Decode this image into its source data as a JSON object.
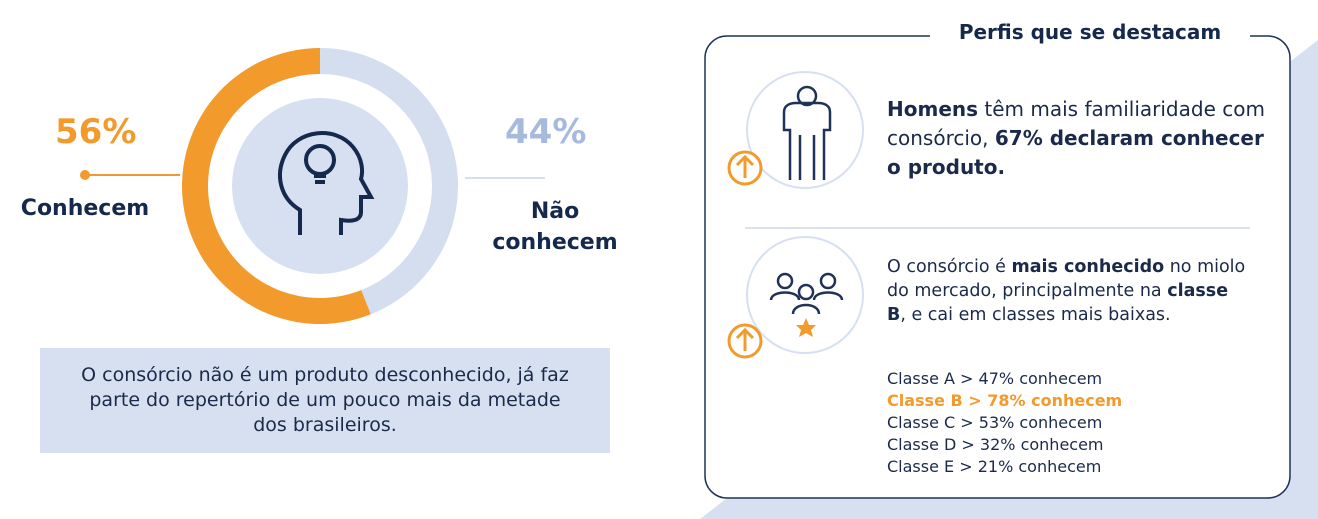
{
  "chart_data": {
    "type": "donut",
    "categories": [
      "Conhecem",
      "Não conhecem"
    ],
    "values": [
      56,
      44
    ],
    "value_labels": [
      "56%",
      "44%"
    ],
    "colors": [
      "#f39a2c",
      "#d4deef"
    ]
  },
  "summary": "O consórcio não é um produto desconhecido, já faz parte do repertório de um pouco mais da metade dos brasileiros.",
  "panel": {
    "title": "Perfis que se destacam",
    "profiles": [
      {
        "text": [
          {
            "text": "Homens",
            "bold": true
          },
          {
            "text": " têm mais familiaridade com consórcio, ",
            "bold": false
          },
          {
            "text": "67% declaram conhecer o produto.",
            "bold": true
          }
        ]
      },
      {
        "text": [
          {
            "text": "O consórcio é ",
            "bold": false
          },
          {
            "text": "mais conhecido",
            "bold": true
          },
          {
            "text": " no miolo do mercado, principalmente na ",
            "bold": false
          },
          {
            "text": "classe B",
            "bold": true
          },
          {
            "text": ", e cai em classes mais baixas.",
            "bold": false
          }
        ]
      }
    ],
    "classes": [
      {
        "text": "Classe A > 47% conhecem",
        "color": "#1b2a4a",
        "bold": false
      },
      {
        "text": "Classe B > 78% conhecem",
        "color": "#f39a2c",
        "bold": true
      },
      {
        "text": "Classe C > 53% conhecem",
        "color": "#1b2a4a",
        "bold": false
      },
      {
        "text": "Classe D > 32% conhecem",
        "color": "#1b2a4a",
        "bold": false
      },
      {
        "text": "Classe E > 21% conhecem",
        "color": "#1b2a4a",
        "bold": false
      }
    ]
  }
}
